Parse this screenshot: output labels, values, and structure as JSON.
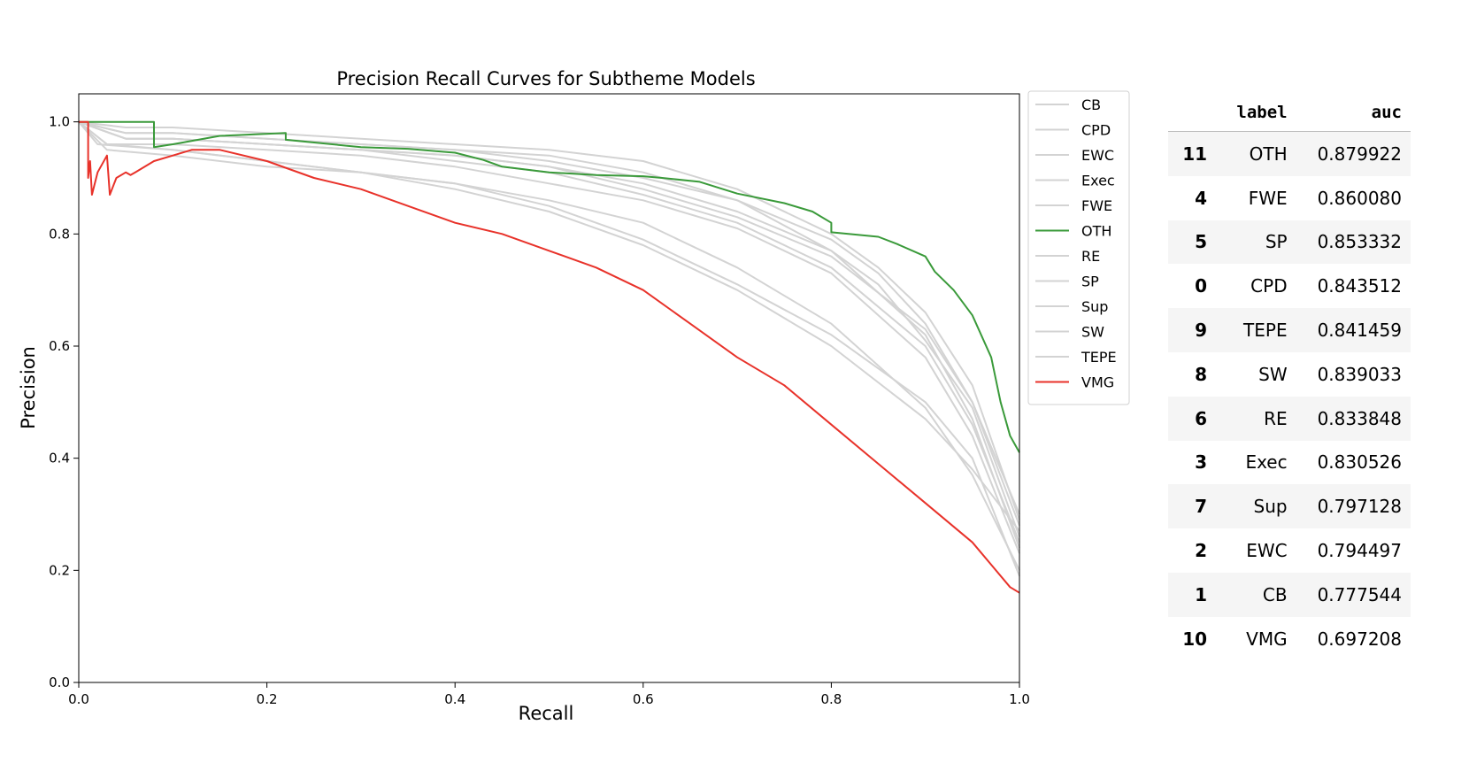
{
  "chart_data": {
    "type": "line",
    "title": "Precision Recall Curves for Subtheme Models",
    "xlabel": "Recall",
    "ylabel": "Precision",
    "xlim": [
      0.0,
      1.0
    ],
    "ylim": [
      0.0,
      1.0
    ],
    "xticks": [
      "0.0",
      "0.2",
      "0.4",
      "0.6",
      "0.8",
      "1.0"
    ],
    "yticks": [
      "0.0",
      "0.2",
      "0.4",
      "0.6",
      "0.8",
      "1.0"
    ],
    "legend_position": "outside-upper-right",
    "grid": false,
    "colors": {
      "highlight_high": "#3a9a3a",
      "highlight_low": "#e8322a",
      "other": "#d3d3d3"
    },
    "series": [
      {
        "name": "CB",
        "color": "#d3d3d3",
        "points": [
          [
            0,
            1.0
          ],
          [
            0.02,
            0.96
          ],
          [
            0.1,
            0.95
          ],
          [
            0.2,
            0.93
          ],
          [
            0.3,
            0.91
          ],
          [
            0.4,
            0.88
          ],
          [
            0.5,
            0.84
          ],
          [
            0.6,
            0.78
          ],
          [
            0.7,
            0.7
          ],
          [
            0.8,
            0.6
          ],
          [
            0.9,
            0.47
          ],
          [
            0.95,
            0.38
          ],
          [
            1.0,
            0.27
          ]
        ]
      },
      {
        "name": "CPD",
        "color": "#d3d3d3",
        "points": [
          [
            0,
            1.0
          ],
          [
            0.05,
            0.98
          ],
          [
            0.1,
            0.98
          ],
          [
            0.2,
            0.97
          ],
          [
            0.3,
            0.96
          ],
          [
            0.4,
            0.95
          ],
          [
            0.5,
            0.94
          ],
          [
            0.6,
            0.91
          ],
          [
            0.7,
            0.86
          ],
          [
            0.8,
            0.77
          ],
          [
            0.85,
            0.71
          ],
          [
            0.9,
            0.61
          ],
          [
            0.95,
            0.49
          ],
          [
            1.0,
            0.26
          ]
        ]
      },
      {
        "name": "EWC",
        "color": "#d3d3d3",
        "points": [
          [
            0,
            1.0
          ],
          [
            0.03,
            0.95
          ],
          [
            0.1,
            0.94
          ],
          [
            0.2,
            0.92
          ],
          [
            0.3,
            0.91
          ],
          [
            0.4,
            0.89
          ],
          [
            0.5,
            0.86
          ],
          [
            0.6,
            0.82
          ],
          [
            0.7,
            0.74
          ],
          [
            0.8,
            0.64
          ],
          [
            0.9,
            0.49
          ],
          [
            0.95,
            0.37
          ],
          [
            1.0,
            0.2
          ]
        ]
      },
      {
        "name": "Exec",
        "color": "#d3d3d3",
        "points": [
          [
            0,
            1.0
          ],
          [
            0.03,
            0.96
          ],
          [
            0.1,
            0.96
          ],
          [
            0.2,
            0.95
          ],
          [
            0.3,
            0.94
          ],
          [
            0.4,
            0.92
          ],
          [
            0.5,
            0.89
          ],
          [
            0.6,
            0.86
          ],
          [
            0.7,
            0.81
          ],
          [
            0.8,
            0.73
          ],
          [
            0.9,
            0.58
          ],
          [
            0.95,
            0.44
          ],
          [
            1.0,
            0.23
          ]
        ]
      },
      {
        "name": "FWE",
        "color": "#d3d3d3",
        "points": [
          [
            0,
            1.0
          ],
          [
            0.05,
            0.99
          ],
          [
            0.1,
            0.99
          ],
          [
            0.2,
            0.98
          ],
          [
            0.3,
            0.97
          ],
          [
            0.4,
            0.96
          ],
          [
            0.5,
            0.95
          ],
          [
            0.6,
            0.93
          ],
          [
            0.7,
            0.88
          ],
          [
            0.8,
            0.8
          ],
          [
            0.85,
            0.74
          ],
          [
            0.9,
            0.66
          ],
          [
            0.95,
            0.53
          ],
          [
            1.0,
            0.29
          ]
        ]
      },
      {
        "name": "OTH",
        "color": "#3a9a3a",
        "points": [
          [
            0.0,
            1.0
          ],
          [
            0.08,
            1.0
          ],
          [
            0.08,
            0.955
          ],
          [
            0.1,
            0.96
          ],
          [
            0.15,
            0.975
          ],
          [
            0.22,
            0.98
          ],
          [
            0.22,
            0.968
          ],
          [
            0.3,
            0.955
          ],
          [
            0.35,
            0.952
          ],
          [
            0.4,
            0.945
          ],
          [
            0.43,
            0.932
          ],
          [
            0.45,
            0.92
          ],
          [
            0.5,
            0.91
          ],
          [
            0.55,
            0.905
          ],
          [
            0.6,
            0.903
          ],
          [
            0.62,
            0.9
          ],
          [
            0.66,
            0.893
          ],
          [
            0.7,
            0.872
          ],
          [
            0.75,
            0.855
          ],
          [
            0.78,
            0.84
          ],
          [
            0.8,
            0.82
          ],
          [
            0.8,
            0.803
          ],
          [
            0.85,
            0.795
          ],
          [
            0.87,
            0.782
          ],
          [
            0.9,
            0.76
          ],
          [
            0.91,
            0.733
          ],
          [
            0.93,
            0.7
          ],
          [
            0.95,
            0.655
          ],
          [
            0.97,
            0.58
          ],
          [
            0.98,
            0.5
          ],
          [
            0.99,
            0.44
          ],
          [
            1.0,
            0.41
          ]
        ]
      },
      {
        "name": "RE",
        "color": "#d3d3d3",
        "points": [
          [
            0,
            1.0
          ],
          [
            0.05,
            0.97
          ],
          [
            0.1,
            0.97
          ],
          [
            0.2,
            0.96
          ],
          [
            0.3,
            0.95
          ],
          [
            0.4,
            0.93
          ],
          [
            0.5,
            0.91
          ],
          [
            0.6,
            0.87
          ],
          [
            0.7,
            0.82
          ],
          [
            0.8,
            0.74
          ],
          [
            0.9,
            0.6
          ],
          [
            0.95,
            0.46
          ],
          [
            1.0,
            0.25
          ]
        ]
      },
      {
        "name": "SP",
        "color": "#d3d3d3",
        "points": [
          [
            0,
            1.0
          ],
          [
            0.05,
            0.98
          ],
          [
            0.1,
            0.98
          ],
          [
            0.2,
            0.97
          ],
          [
            0.3,
            0.96
          ],
          [
            0.4,
            0.95
          ],
          [
            0.5,
            0.93
          ],
          [
            0.6,
            0.9
          ],
          [
            0.7,
            0.86
          ],
          [
            0.8,
            0.79
          ],
          [
            0.85,
            0.73
          ],
          [
            0.9,
            0.64
          ],
          [
            0.95,
            0.5
          ],
          [
            1.0,
            0.3
          ]
        ]
      },
      {
        "name": "Sup",
        "color": "#d3d3d3",
        "points": [
          [
            0,
            1.0
          ],
          [
            0.03,
            0.96
          ],
          [
            0.1,
            0.95
          ],
          [
            0.2,
            0.93
          ],
          [
            0.3,
            0.91
          ],
          [
            0.4,
            0.89
          ],
          [
            0.5,
            0.85
          ],
          [
            0.6,
            0.79
          ],
          [
            0.7,
            0.71
          ],
          [
            0.8,
            0.62
          ],
          [
            0.9,
            0.5
          ],
          [
            0.95,
            0.4
          ],
          [
            1.0,
            0.19
          ]
        ]
      },
      {
        "name": "SW",
        "color": "#d3d3d3",
        "points": [
          [
            0,
            1.0
          ],
          [
            0.05,
            0.97
          ],
          [
            0.1,
            0.97
          ],
          [
            0.2,
            0.96
          ],
          [
            0.3,
            0.95
          ],
          [
            0.4,
            0.94
          ],
          [
            0.5,
            0.92
          ],
          [
            0.6,
            0.89
          ],
          [
            0.7,
            0.84
          ],
          [
            0.8,
            0.77
          ],
          [
            0.9,
            0.62
          ],
          [
            0.95,
            0.47
          ],
          [
            1.0,
            0.24
          ]
        ]
      },
      {
        "name": "TEPE",
        "color": "#d3d3d3",
        "points": [
          [
            0,
            1.0
          ],
          [
            0.05,
            0.97
          ],
          [
            0.1,
            0.97
          ],
          [
            0.2,
            0.96
          ],
          [
            0.3,
            0.95
          ],
          [
            0.4,
            0.94
          ],
          [
            0.5,
            0.92
          ],
          [
            0.6,
            0.88
          ],
          [
            0.7,
            0.83
          ],
          [
            0.8,
            0.76
          ],
          [
            0.9,
            0.63
          ],
          [
            0.95,
            0.5
          ],
          [
            1.0,
            0.28
          ]
        ]
      },
      {
        "name": "VMG",
        "color": "#e8322a",
        "points": [
          [
            0.0,
            1.0
          ],
          [
            0.01,
            1.0
          ],
          [
            0.01,
            0.9
          ],
          [
            0.012,
            0.93
          ],
          [
            0.014,
            0.87
          ],
          [
            0.02,
            0.91
          ],
          [
            0.03,
            0.94
          ],
          [
            0.033,
            0.87
          ],
          [
            0.04,
            0.9
          ],
          [
            0.05,
            0.91
          ],
          [
            0.055,
            0.905
          ],
          [
            0.06,
            0.91
          ],
          [
            0.08,
            0.93
          ],
          [
            0.1,
            0.94
          ],
          [
            0.12,
            0.95
          ],
          [
            0.15,
            0.95
          ],
          [
            0.2,
            0.93
          ],
          [
            0.25,
            0.9
          ],
          [
            0.3,
            0.88
          ],
          [
            0.35,
            0.85
          ],
          [
            0.4,
            0.82
          ],
          [
            0.45,
            0.8
          ],
          [
            0.5,
            0.77
          ],
          [
            0.55,
            0.74
          ],
          [
            0.6,
            0.7
          ],
          [
            0.65,
            0.64
          ],
          [
            0.7,
            0.58
          ],
          [
            0.75,
            0.53
          ],
          [
            0.8,
            0.46
          ],
          [
            0.85,
            0.39
          ],
          [
            0.9,
            0.32
          ],
          [
            0.95,
            0.25
          ],
          [
            0.97,
            0.21
          ],
          [
            0.99,
            0.17
          ],
          [
            1.0,
            0.16
          ]
        ]
      }
    ]
  },
  "table": {
    "headers": [
      "",
      "label",
      "auc"
    ],
    "rows": [
      {
        "index": "11",
        "label": "OTH",
        "auc": "0.879922"
      },
      {
        "index": "4",
        "label": "FWE",
        "auc": "0.860080"
      },
      {
        "index": "5",
        "label": "SP",
        "auc": "0.853332"
      },
      {
        "index": "0",
        "label": "CPD",
        "auc": "0.843512"
      },
      {
        "index": "9",
        "label": "TEPE",
        "auc": "0.841459"
      },
      {
        "index": "8",
        "label": "SW",
        "auc": "0.839033"
      },
      {
        "index": "6",
        "label": "RE",
        "auc": "0.833848"
      },
      {
        "index": "3",
        "label": "Exec",
        "auc": "0.830526"
      },
      {
        "index": "7",
        "label": "Sup",
        "auc": "0.797128"
      },
      {
        "index": "2",
        "label": "EWC",
        "auc": "0.794497"
      },
      {
        "index": "1",
        "label": "CB",
        "auc": "0.777544"
      },
      {
        "index": "10",
        "label": "VMG",
        "auc": "0.697208"
      }
    ]
  }
}
